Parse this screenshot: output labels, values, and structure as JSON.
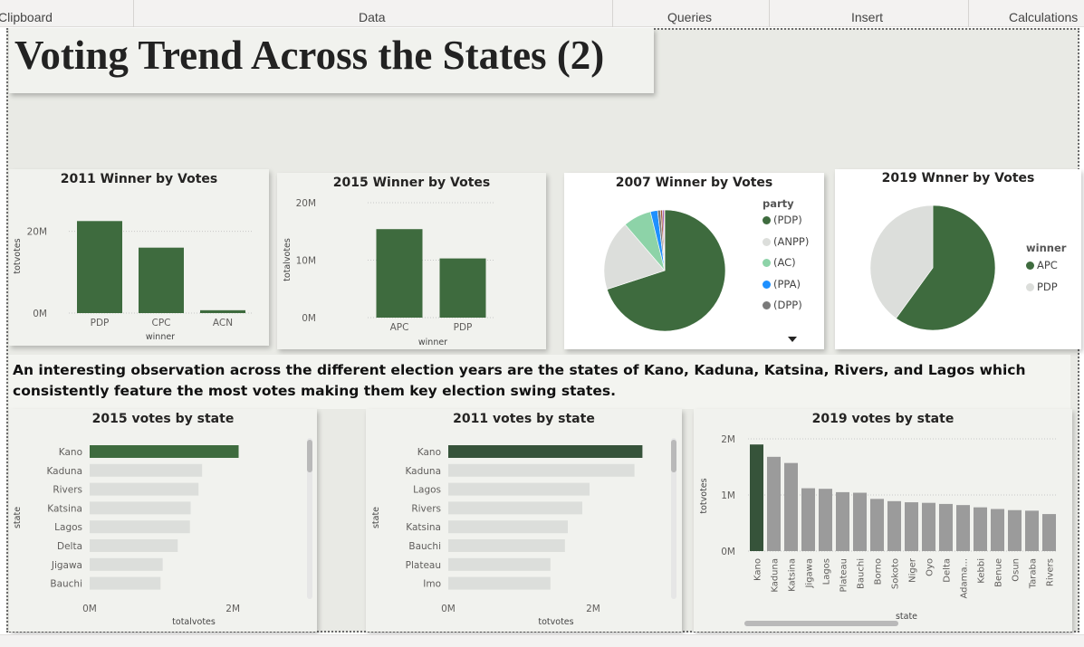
{
  "ribbon": {
    "groups": [
      "Clipboard",
      "Data",
      "Queries",
      "Insert",
      "Calculations"
    ]
  },
  "page": {
    "title": "Voting Trend Across the States (2)",
    "observation": "An interesting observation across the different election years are the states of Kano, Kaduna, Katsina, Rivers, and Lagos which consistently feature the most votes making them key election swing states."
  },
  "colors": {
    "primary": "#3e6b3e",
    "dark_primary": "#36533a",
    "light_gray": "#dcdedb",
    "mid_gray": "#9b9b9b",
    "ac_green": "#8dd3a8",
    "ppa_blue": "#1e90ff",
    "dpp_gray": "#7a7a7a"
  },
  "chart_data": [
    {
      "id": "winner2011",
      "type": "bar",
      "title": "2011 Winner by Votes",
      "xlabel": "winner",
      "ylabel": "totvotes",
      "categories": [
        "PDP",
        "CPC",
        "ACN"
      ],
      "values": [
        22500000,
        16000000,
        700000
      ],
      "yticks": [
        {
          "v": 0,
          "label": "0M"
        },
        {
          "v": 20000000,
          "label": "20M"
        }
      ],
      "ylim": [
        0,
        25000000
      ]
    },
    {
      "id": "winner2015",
      "type": "bar",
      "title": "2015 Winner by Votes",
      "xlabel": "winner",
      "ylabel": "totalvotes",
      "categories": [
        "APC",
        "PDP"
      ],
      "values": [
        15400000,
        10300000
      ],
      "yticks": [
        {
          "v": 0,
          "label": "0M"
        },
        {
          "v": 10000000,
          "label": "10M"
        },
        {
          "v": 20000000,
          "label": "20M"
        }
      ],
      "ylim": [
        0,
        20000000
      ]
    },
    {
      "id": "winner2007",
      "type": "pie",
      "title": "2007 Winner by Votes",
      "legend_title": "party",
      "slices": [
        {
          "name": "(PDP)",
          "value": 70.0
        },
        {
          "name": "(ANPP)",
          "value": 18.7
        },
        {
          "name": "(AC)",
          "value": 7.5
        },
        {
          "name": "(PPA)",
          "value": 1.9
        },
        {
          "name": "(DPP)",
          "value": 0.8
        },
        {
          "name": "",
          "value": 0.5
        },
        {
          "name": "",
          "value": 0.4
        },
        {
          "name": "",
          "value": 0.2
        }
      ]
    },
    {
      "id": "winner2019",
      "type": "pie",
      "title": "2019 Wnner by Votes",
      "legend_title": "winner",
      "slices": [
        {
          "name": "APC",
          "value": 60.0
        },
        {
          "name": "PDP",
          "value": 40.0
        }
      ]
    },
    {
      "id": "state2015",
      "type": "bar",
      "orientation": "horizontal",
      "title": "2015 votes by state",
      "xlabel": "totalvotes",
      "ylabel": "state",
      "categories": [
        "Kano",
        "Kaduna",
        "Rivers",
        "Katsina",
        "Lagos",
        "Delta",
        "Jigawa",
        "Bauchi"
      ],
      "values": [
        2080000,
        1570000,
        1520000,
        1410000,
        1400000,
        1230000,
        1020000,
        990000
      ],
      "xticks": [
        {
          "v": 0,
          "label": "0M"
        },
        {
          "v": 2000000,
          "label": "2M"
        }
      ],
      "xlim": [
        0,
        2200000
      ]
    },
    {
      "id": "state2011",
      "type": "bar",
      "orientation": "horizontal",
      "title": "2011 votes by state",
      "xlabel": "totvotes",
      "ylabel": "state",
      "categories": [
        "Kano",
        "Kaduna",
        "Lagos",
        "Rivers",
        "Katsina",
        "Bauchi",
        "Plateau",
        "Imo"
      ],
      "values": [
        2680000,
        2570000,
        1950000,
        1850000,
        1650000,
        1610000,
        1410000,
        1410000
      ],
      "xticks": [
        {
          "v": 0,
          "label": "0M"
        },
        {
          "v": 2000000,
          "label": "2M"
        }
      ],
      "xlim": [
        0,
        2800000
      ]
    },
    {
      "id": "state2019",
      "type": "bar",
      "title": "2019 votes by state",
      "xlabel": "state",
      "ylabel": "totvotes",
      "categories": [
        "Kano",
        "Kaduna",
        "Katsina",
        "Jigawa",
        "Lagos",
        "Plateau",
        "Bauchi",
        "Borno",
        "Sokoto",
        "Niger",
        "Oyo",
        "Delta",
        "Adama...",
        "Kebbi",
        "Benue",
        "Osun",
        "Taraba",
        "Rivers"
      ],
      "values": [
        1900000,
        1680000,
        1570000,
        1120000,
        1110000,
        1050000,
        1040000,
        930000,
        890000,
        870000,
        860000,
        840000,
        820000,
        780000,
        750000,
        730000,
        720000,
        660000
      ],
      "yticks": [
        {
          "v": 0,
          "label": "0M"
        },
        {
          "v": 1000000,
          "label": "1M"
        },
        {
          "v": 2000000,
          "label": "2M"
        }
      ],
      "ylim": [
        0,
        2000000
      ]
    }
  ]
}
